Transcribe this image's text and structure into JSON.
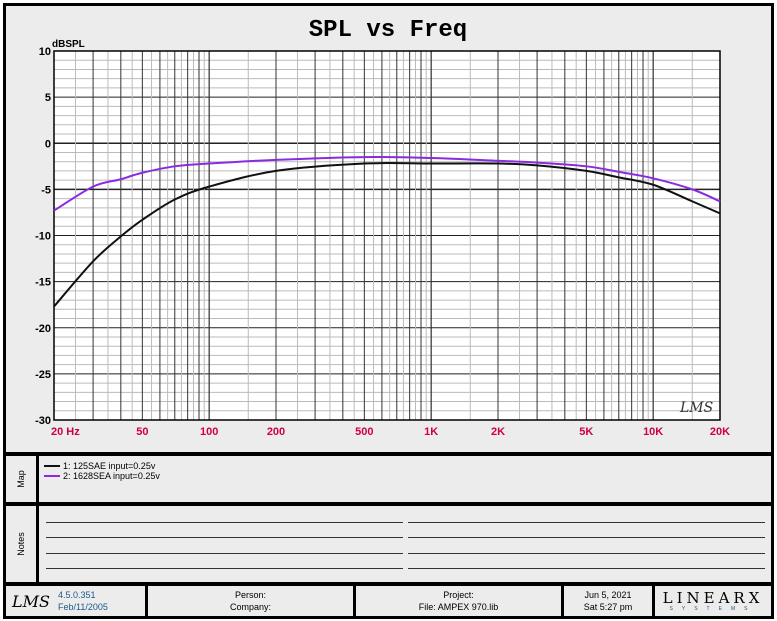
{
  "chart_data": {
    "type": "line",
    "title": "SPL vs Freq",
    "ylabel": "dBSPL",
    "xlabel": "",
    "xscale": "log",
    "xlim": [
      20,
      20000
    ],
    "ylim": [
      -30,
      10
    ],
    "grid": true,
    "yticks": [
      10,
      5,
      0,
      -5,
      -10,
      -15,
      -20,
      -25,
      -30
    ],
    "xticks": [
      {
        "value": 20,
        "label": "20 Hz"
      },
      {
        "value": 50,
        "label": "50"
      },
      {
        "value": 100,
        "label": "100"
      },
      {
        "value": 200,
        "label": "200"
      },
      {
        "value": 500,
        "label": "500"
      },
      {
        "value": 1000,
        "label": "1K"
      },
      {
        "value": 2000,
        "label": "2K"
      },
      {
        "value": 5000,
        "label": "5K"
      },
      {
        "value": 10000,
        "label": "10K"
      },
      {
        "value": 20000,
        "label": "20K"
      }
    ],
    "x": [
      20,
      30,
      40,
      50,
      70,
      100,
      200,
      500,
      1000,
      2000,
      3000,
      5000,
      7000,
      10000,
      15000,
      20000
    ],
    "series": [
      {
        "name": "1: 125SAE  input=0.25v",
        "color": "#111111",
        "values": [
          -17.7,
          -12.8,
          -10.1,
          -8.3,
          -6.1,
          -4.7,
          -3.0,
          -2.2,
          -2.2,
          -2.2,
          -2.4,
          -3.0,
          -3.7,
          -4.5,
          -6.3,
          -7.6
        ]
      },
      {
        "name": "2: 1628SEA  input=0.25v",
        "color": "#8a2be2",
        "values": [
          -7.3,
          -4.7,
          -3.9,
          -3.2,
          -2.5,
          -2.2,
          -1.8,
          -1.5,
          -1.6,
          -1.9,
          -2.1,
          -2.5,
          -3.1,
          -3.8,
          -5.0,
          -6.3
        ]
      }
    ],
    "watermark": "LMS",
    "tick_color": "#cc0044"
  },
  "panels": {
    "map_label": "Map",
    "notes_label": "Notes"
  },
  "footer": {
    "logo": "LMS",
    "version": "4.5.0.351",
    "build_date": "Feb/11/2005",
    "person": "Person:",
    "company": "Company:",
    "project": "Project:",
    "file": "File: AMPEX 970.lib",
    "date": "Jun  5, 2021",
    "time": "Sat  5:27 pm",
    "brand": "LINEARX",
    "brand_sub": "SYSTEMS"
  }
}
